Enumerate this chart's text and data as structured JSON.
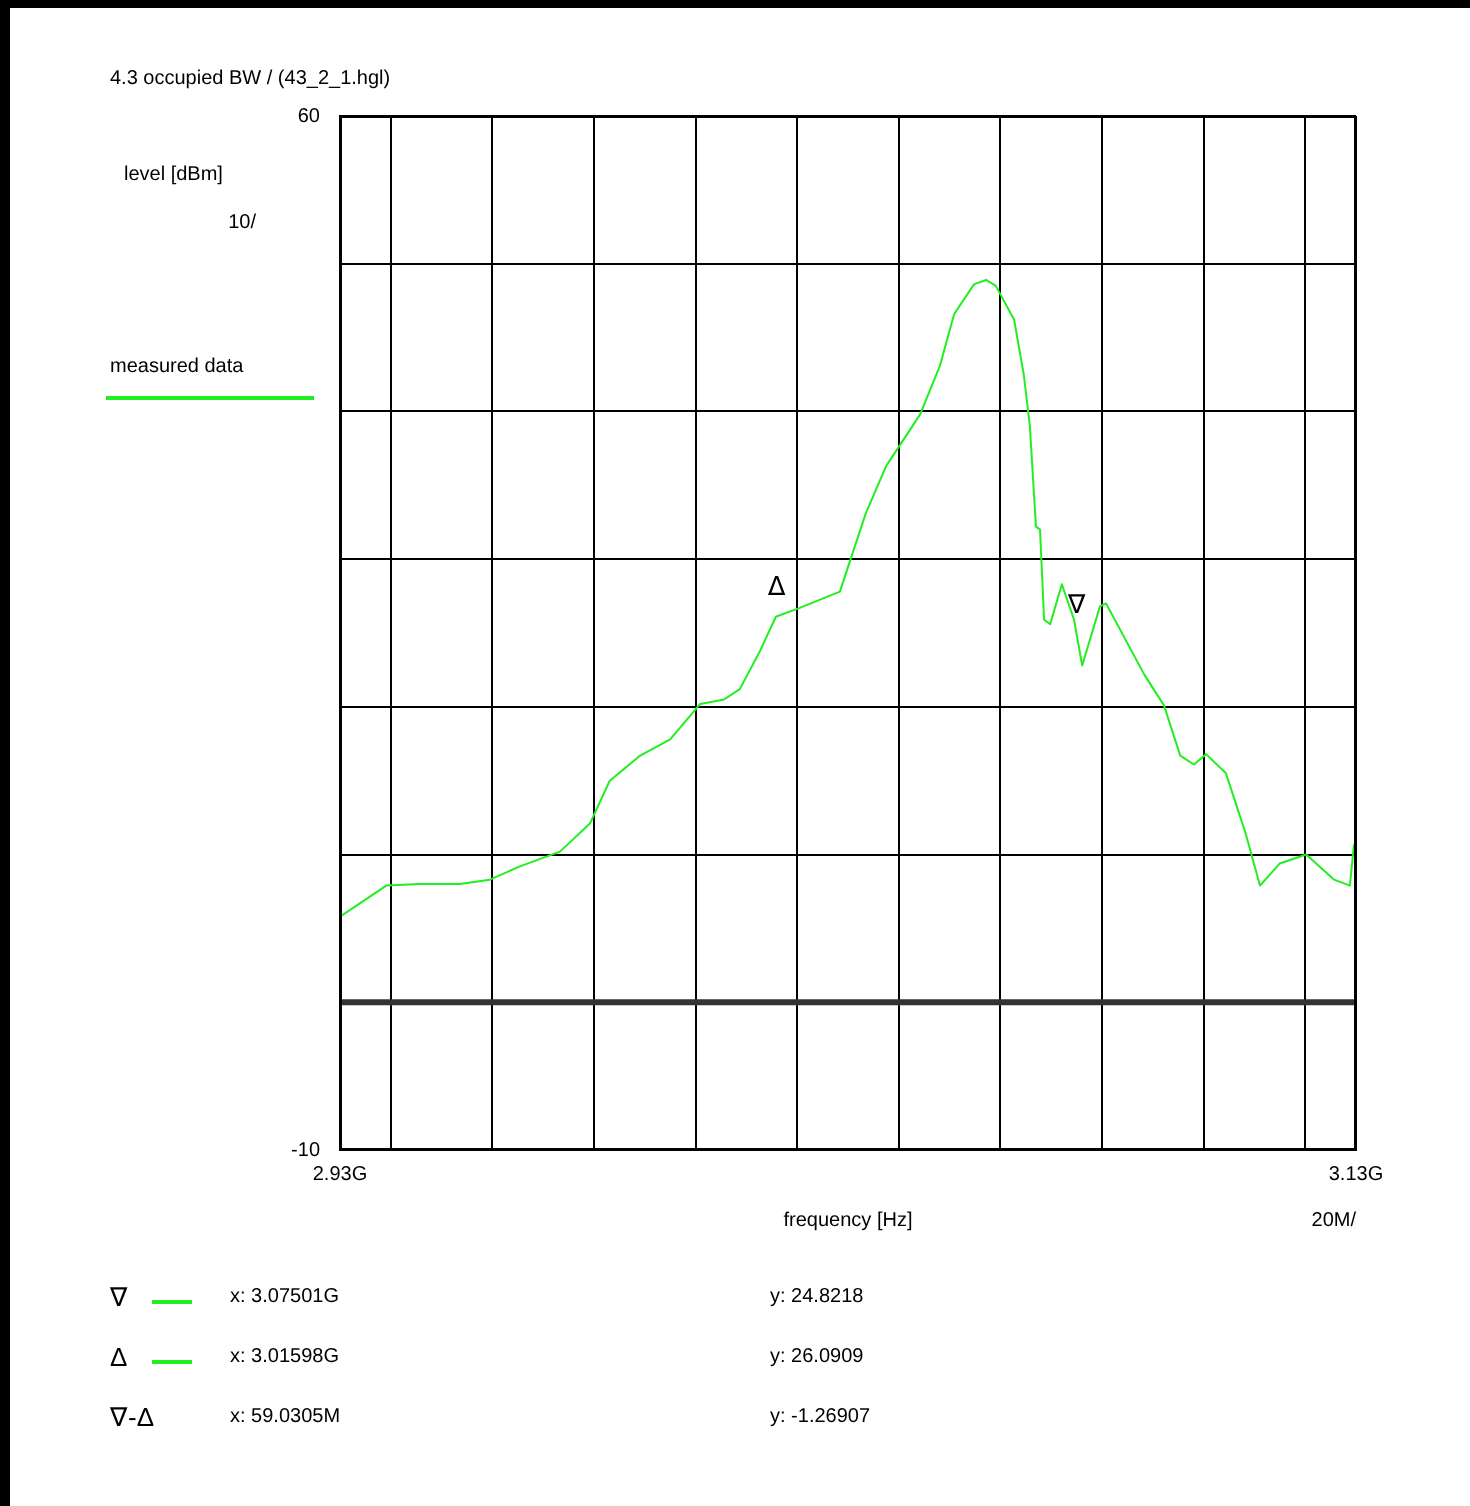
{
  "chart_data": {
    "type": "line",
    "title": "4.3 occupied BW / (43_2_1.hgl)",
    "xlabel": "frequency [Hz]",
    "ylabel": "level [dBm]",
    "x": [
      2.93,
      2.9339,
      2.9391,
      2.9457,
      2.9536,
      2.9595,
      2.9654,
      2.9733,
      2.9792,
      2.9831,
      2.9891,
      2.995,
      3.0009,
      3.0056,
      3.0087,
      3.0127,
      3.0158,
      3.0205,
      3.0284,
      3.0335,
      3.0375,
      3.0442,
      3.0481,
      3.0509,
      3.0548,
      3.0572,
      3.0591,
      3.0627,
      3.0646,
      3.0658,
      3.067,
      3.0678,
      3.0686,
      3.0698,
      3.0721,
      3.0745,
      3.0761,
      3.0796,
      3.0808,
      3.0847,
      3.0883,
      3.0922,
      3.0954,
      3.0981,
      3.1005,
      3.1044,
      3.1083,
      3.1111,
      3.115,
      3.1202,
      3.1257,
      3.1288,
      3.1296
    ],
    "series": [
      {
        "name": "measured data",
        "color": "#22ee22",
        "values": [
          5.8,
          6.7,
          7.9,
          8.0,
          8.0,
          8.3,
          9.2,
          10.2,
          12.1,
          15.0,
          16.7,
          17.8,
          20.2,
          20.5,
          21.2,
          23.8,
          26.1,
          26.7,
          27.8,
          33.1,
          36.3,
          39.8,
          43.1,
          46.6,
          48.6,
          48.9,
          48.5,
          46.2,
          42.5,
          39.0,
          32.2,
          32.0,
          25.9,
          25.6,
          28.3,
          25.9,
          22.8,
          26.8,
          27.0,
          24.5,
          22.2,
          20.1,
          16.7,
          16.1,
          16.8,
          15.5,
          11.4,
          7.9,
          9.4,
          10.0,
          8.3,
          7.9,
          10.7
        ]
      }
    ],
    "xlim": [
      2.93,
      3.13
    ],
    "xticks": [
      {
        "value": 2.93,
        "label": "2.93G"
      },
      {
        "value": 2.94,
        "label": null
      },
      {
        "value": 2.96,
        "label": null
      },
      {
        "value": 2.98,
        "label": null
      },
      {
        "value": 3.0,
        "label": null
      },
      {
        "value": 3.02,
        "label": null
      },
      {
        "value": 3.04,
        "label": null
      },
      {
        "value": 3.06,
        "label": null
      },
      {
        "value": 3.08,
        "label": null
      },
      {
        "value": 3.1,
        "label": null
      },
      {
        "value": 3.12,
        "label": null
      },
      {
        "value": 3.13,
        "label": "3.13G"
      }
    ],
    "ylim": [
      -10,
      60
    ],
    "yticks": [
      {
        "value": -10,
        "label": "-10"
      },
      {
        "value": 0,
        "label": null
      },
      {
        "value": 10,
        "label": null
      },
      {
        "value": 20,
        "label": null
      },
      {
        "value": 30,
        "label": null
      },
      {
        "value": 40,
        "label": null
      },
      {
        "value": 50,
        "label": null
      },
      {
        "value": 60,
        "label": "60"
      }
    ],
    "ref_lines": [
      {
        "axis": "y",
        "value": 0,
        "color": "#333333"
      }
    ],
    "grid": true,
    "legend": "left",
    "annotations": [
      "10/",
      "20M/",
      {
        "text": "∇",
        "x": 3.07501,
        "y": 24.8218
      },
      {
        "text": "Δ",
        "x": 3.01598,
        "y": 26.0909
      },
      "∇",
      "x: 3.07501G",
      "y: 24.8218",
      "Δ",
      "x: 3.01598G",
      "y: 26.0909",
      "∇-Δ",
      "x: 59.0305M",
      "y: -1.26907"
    ]
  }
}
